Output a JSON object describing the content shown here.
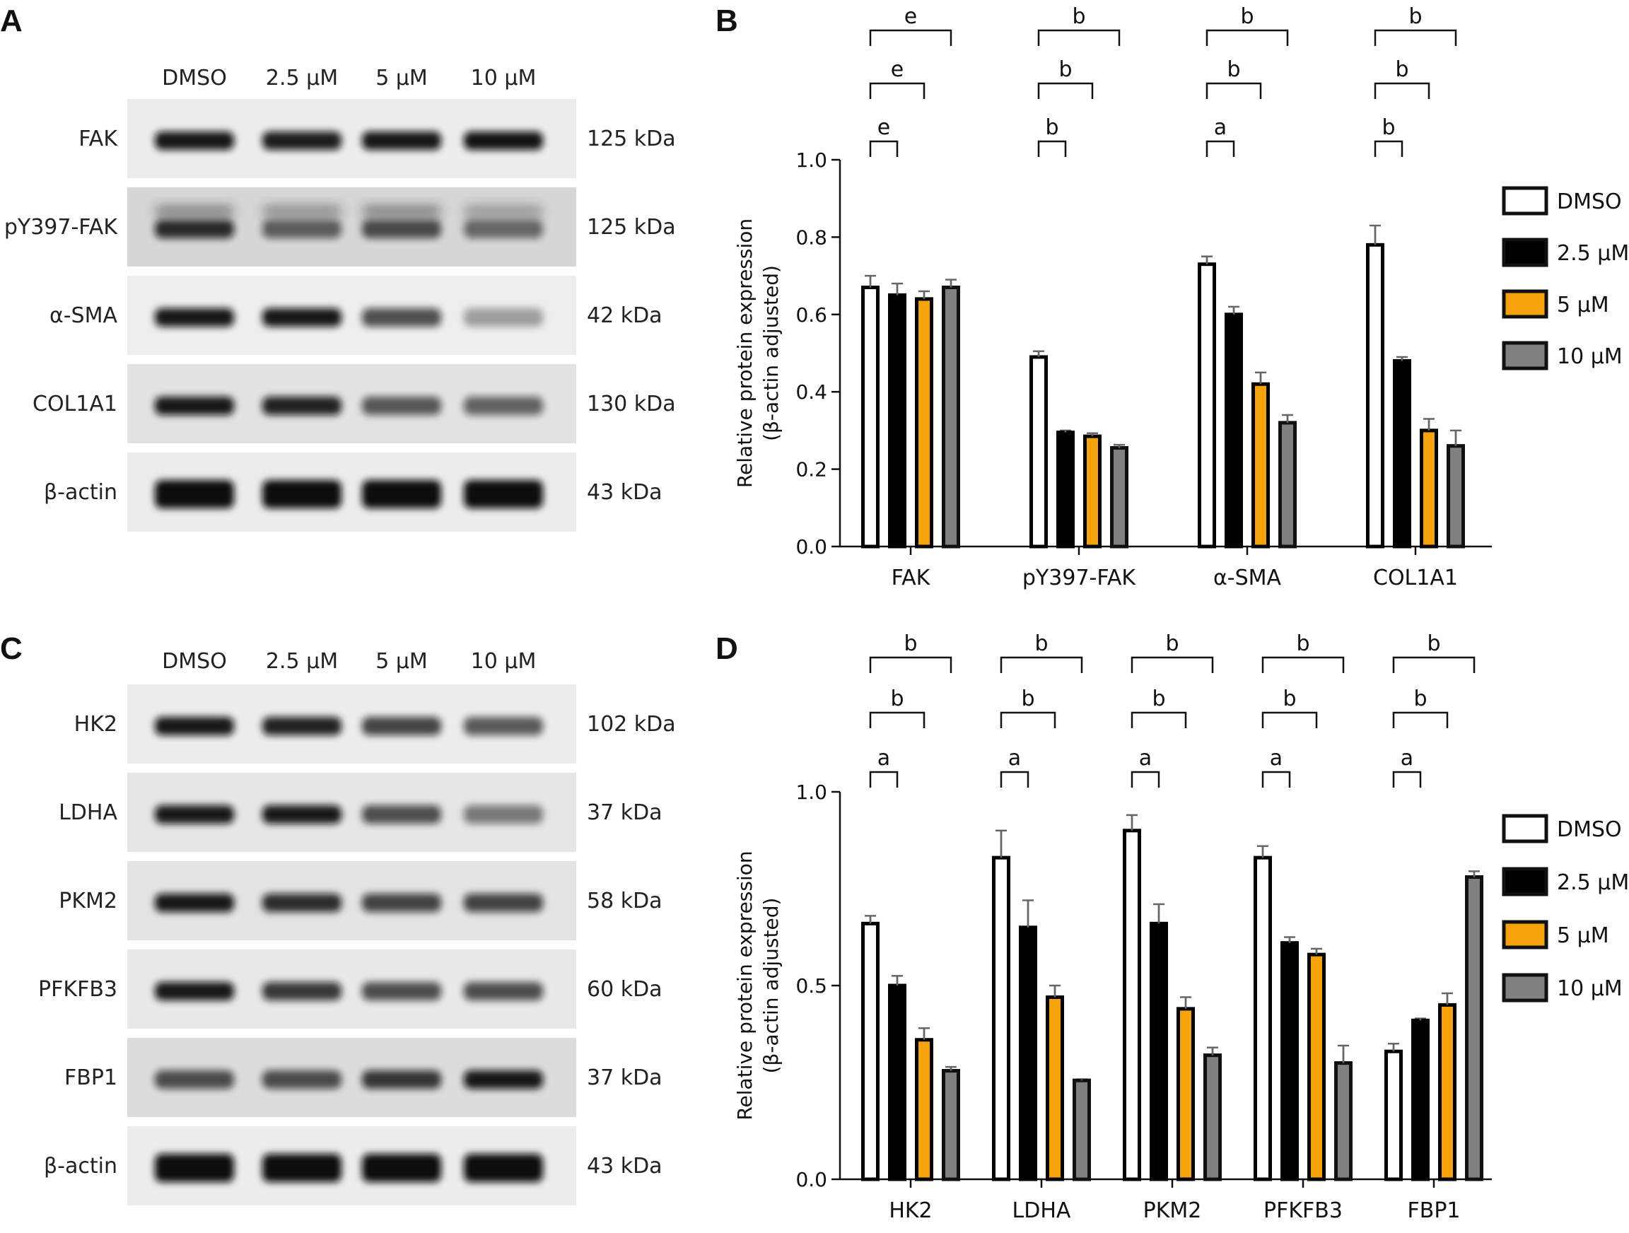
{
  "panels": {
    "A": {
      "letter": "A",
      "lanes": [
        "DMSO",
        "2.5 μM",
        "5 μM",
        "10 μM"
      ],
      "rows": [
        {
          "label": "FAK",
          "kda": "125 kDa",
          "intensity": [
            0.95,
            0.92,
            0.95,
            0.97
          ],
          "upper": [
            0,
            0,
            0,
            0
          ],
          "bg": "#ececec"
        },
        {
          "label": "pY397-FAK",
          "kda": "125 kDa",
          "intensity": [
            0.85,
            0.6,
            0.7,
            0.55
          ],
          "upper": [
            0.5,
            0.45,
            0.5,
            0.4
          ],
          "bg": "#d6d6d6"
        },
        {
          "label": "α-SMA",
          "kda": "42 kDa",
          "intensity": [
            0.95,
            0.95,
            0.7,
            0.35
          ],
          "upper": [
            0,
            0,
            0,
            0
          ],
          "bg": "#ededed"
        },
        {
          "label": "COL1A1",
          "kda": "130 kDa",
          "intensity": [
            0.95,
            0.9,
            0.65,
            0.6
          ],
          "upper": [
            0,
            0,
            0,
            0
          ],
          "bg": "#e2e2e2"
        },
        {
          "label": "β-actin",
          "kda": "43 kDa",
          "intensity": [
            1,
            1,
            1,
            1
          ],
          "upper": [
            0,
            0,
            0,
            0
          ],
          "bg": "#ececec"
        }
      ]
    },
    "B": {
      "letter": "B"
    },
    "C": {
      "letter": "C",
      "lanes": [
        "DMSO",
        "2.5 μM",
        "5 μM",
        "10 μM"
      ],
      "rows": [
        {
          "label": "HK2",
          "kda": "102 kDa",
          "intensity": [
            0.95,
            0.9,
            0.75,
            0.65
          ],
          "upper": [
            0,
            0,
            0,
            0
          ],
          "bg": "#ececec"
        },
        {
          "label": "LDHA",
          "kda": "37 kDa",
          "intensity": [
            0.95,
            0.95,
            0.7,
            0.5
          ],
          "upper": [
            0,
            0,
            0,
            0
          ],
          "bg": "#e6e6e6"
        },
        {
          "label": "PKM2",
          "kda": "58 kDa",
          "intensity": [
            0.95,
            0.85,
            0.75,
            0.75
          ],
          "upper": [
            0,
            0,
            0,
            0
          ],
          "bg": "#e3e3e3"
        },
        {
          "label": "PFKFB3",
          "kda": "60 kDa",
          "intensity": [
            0.95,
            0.8,
            0.7,
            0.7
          ],
          "upper": [
            0,
            0,
            0,
            0
          ],
          "bg": "#e8e8e8"
        },
        {
          "label": "FBP1",
          "kda": "37 kDa",
          "intensity": [
            0.7,
            0.7,
            0.8,
            0.95
          ],
          "upper": [
            0,
            0,
            0,
            0
          ],
          "bg": "#dcdcdc"
        },
        {
          "label": "β-actin",
          "kda": "43 kDa",
          "intensity": [
            1,
            1,
            1,
            1
          ],
          "upper": [
            0,
            0,
            0,
            0
          ],
          "bg": "#ececec"
        }
      ]
    },
    "D": {
      "letter": "D"
    }
  },
  "legend_entries": [
    "DMSO",
    "2.5 μM",
    "5 μM",
    "10 μM"
  ],
  "colors": {
    "DMSO": "#ffffff",
    "2.5 μM": "#000000",
    "5 μM": "#f5a30c",
    "10 μM": "#808080"
  },
  "chart_data": [
    {
      "panel": "B",
      "type": "bar",
      "categories": [
        "FAK",
        "pY397-FAK",
        "α-SMA",
        "COL1A1"
      ],
      "ylabel": "Relative protein expression (β-actin adjusted)",
      "ylabel_lines": [
        "Relative protein expression",
        "(β-actin adjusted)"
      ],
      "ylim": [
        0,
        1.0
      ],
      "yticks": [
        "0.0",
        "0.2",
        "0.4",
        "0.6",
        "0.8",
        "1.0"
      ],
      "ytick_values": [
        0,
        0.2,
        0.4,
        0.6,
        0.8,
        1.0
      ],
      "legend_placement": "right",
      "series": [
        {
          "name": "DMSO",
          "values": [
            0.67,
            0.49,
            0.73,
            0.78
          ],
          "errors": [
            0.03,
            0.015,
            0.02,
            0.05
          ]
        },
        {
          "name": "2.5 μM",
          "values": [
            0.65,
            0.295,
            0.6,
            0.48
          ],
          "errors": [
            0.03,
            0.005,
            0.02,
            0.01
          ]
        },
        {
          "name": "5 μM",
          "values": [
            0.64,
            0.285,
            0.42,
            0.3
          ],
          "errors": [
            0.02,
            0.008,
            0.03,
            0.03
          ]
        },
        {
          "name": "10 μM",
          "values": [
            0.67,
            0.255,
            0.32,
            0.26
          ],
          "errors": [
            0.02,
            0.008,
            0.02,
            0.04
          ]
        }
      ],
      "significance": [
        [
          "e",
          "e",
          "e"
        ],
        [
          "b",
          "b",
          "b"
        ],
        [
          "a",
          "b",
          "b"
        ],
        [
          "b",
          "b",
          "b"
        ]
      ]
    },
    {
      "panel": "D",
      "type": "bar",
      "categories": [
        "HK2",
        "LDHA",
        "PKM2",
        "PFKFB3",
        "FBP1"
      ],
      "ylabel": "Relative protein expression (β-actin adjusted)",
      "ylabel_lines": [
        "Relative protein expression",
        "(β-actin adjusted)"
      ],
      "ylim": [
        0,
        1.0
      ],
      "yticks": [
        "0.0",
        "0.5",
        "1.0"
      ],
      "ytick_values": [
        0,
        0.5,
        1.0
      ],
      "legend_placement": "right",
      "series": [
        {
          "name": "DMSO",
          "values": [
            0.66,
            0.83,
            0.9,
            0.83,
            0.33
          ],
          "errors": [
            0.02,
            0.07,
            0.04,
            0.03,
            0.02
          ]
        },
        {
          "name": "2.5 μM",
          "values": [
            0.5,
            0.65,
            0.66,
            0.61,
            0.41
          ],
          "errors": [
            0.025,
            0.07,
            0.05,
            0.015,
            0.005
          ]
        },
        {
          "name": "5 μM",
          "values": [
            0.36,
            0.47,
            0.44,
            0.58,
            0.45
          ],
          "errors": [
            0.03,
            0.03,
            0.03,
            0.015,
            0.03
          ]
        },
        {
          "name": "10 μM",
          "values": [
            0.28,
            0.255,
            0.32,
            0.3,
            0.78
          ],
          "errors": [
            0.01,
            0.003,
            0.02,
            0.045,
            0.015
          ]
        }
      ],
      "significance": [
        [
          "a",
          "b",
          "b"
        ],
        [
          "a",
          "b",
          "b"
        ],
        [
          "a",
          "b",
          "b"
        ],
        [
          "a",
          "b",
          "b"
        ],
        [
          "a",
          "b",
          "b"
        ]
      ]
    }
  ]
}
